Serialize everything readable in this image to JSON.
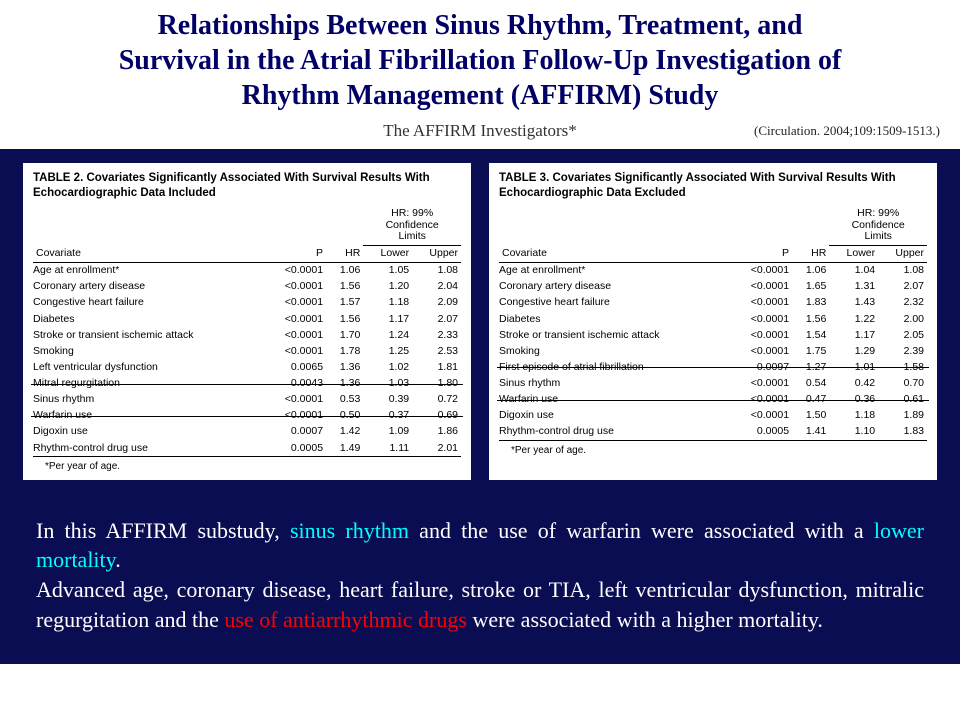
{
  "header": {
    "title_line1": "Relationships Between Sinus Rhythm, Treatment, and",
    "title_line2": "Survival in the Atrial Fibrillation Follow-Up Investigation of",
    "title_line3": "Rhythm Management (AFFIRM) Study",
    "investigators": "The AFFIRM Investigators*",
    "citation": "(Circulation. 2004;109:1509-1513.)",
    "colors": {
      "title": "#000066",
      "background": "#ffffff"
    }
  },
  "band": {
    "background": "#0b0d52",
    "table_bg": "#ffffff"
  },
  "table2": {
    "title": "TABLE 2.   Covariates Significantly Associated With Survival Results With Echocardiographic Data Included",
    "head": {
      "covariate": "Covariate",
      "p": "P",
      "hr": "HR",
      "ci": "HR: 99% Confidence Limits",
      "lower": "Lower",
      "upper": "Upper"
    },
    "rows": [
      {
        "cov": "Age at enrollment*",
        "p": "<0.0001",
        "hr": "1.06",
        "lo": "1.05",
        "up": "1.08"
      },
      {
        "cov": "Coronary artery disease",
        "p": "<0.0001",
        "hr": "1.56",
        "lo": "1.20",
        "up": "2.04"
      },
      {
        "cov": "Congestive heart failure",
        "p": "<0.0001",
        "hr": "1.57",
        "lo": "1.18",
        "up": "2.09"
      },
      {
        "cov": "Diabetes",
        "p": "<0.0001",
        "hr": "1.56",
        "lo": "1.17",
        "up": "2.07"
      },
      {
        "cov": "Stroke or transient ischemic attack",
        "p": "<0.0001",
        "hr": "1.70",
        "lo": "1.24",
        "up": "2.33"
      },
      {
        "cov": "Smoking",
        "p": "<0.0001",
        "hr": "1.78",
        "lo": "1.25",
        "up": "2.53"
      },
      {
        "cov": "Left ventricular dysfunction",
        "p": "0.0065",
        "hr": "1.36",
        "lo": "1.02",
        "up": "1.81"
      },
      {
        "cov": "Mitral regurgitation",
        "p": "0.0043",
        "hr": "1.36",
        "lo": "1.03",
        "up": "1.80"
      },
      {
        "cov": "Sinus rhythm",
        "p": "<0.0001",
        "hr": "0.53",
        "lo": "0.39",
        "up": "0.72"
      },
      {
        "cov": "Warfarin use",
        "p": "<0.0001",
        "hr": "0.50",
        "lo": "0.37",
        "up": "0.69"
      },
      {
        "cov": "Digoxin use",
        "p": "0.0007",
        "hr": "1.42",
        "lo": "1.09",
        "up": "1.86"
      },
      {
        "cov": "Rhythm-control drug use",
        "p": "0.0005",
        "hr": "1.49",
        "lo": "1.11",
        "up": "2.01"
      }
    ],
    "note": "*Per year of age.",
    "strike_rows": [
      "Mitral regurgitation",
      "Warfarin use"
    ]
  },
  "table3": {
    "title": "TABLE 3.   Covariates Significantly Associated With Survival Results With Echocardiographic Data Excluded",
    "head": {
      "covariate": "Covariate",
      "p": "P",
      "hr": "HR",
      "ci": "HR: 99% Confidence Limits",
      "lower": "Lower",
      "upper": "Upper"
    },
    "rows": [
      {
        "cov": "Age at enrollment*",
        "p": "<0.0001",
        "hr": "1.06",
        "lo": "1.04",
        "up": "1.08"
      },
      {
        "cov": "Coronary artery disease",
        "p": "<0.0001",
        "hr": "1.65",
        "lo": "1.31",
        "up": "2.07"
      },
      {
        "cov": "Congestive heart failure",
        "p": "<0.0001",
        "hr": "1.83",
        "lo": "1.43",
        "up": "2.32"
      },
      {
        "cov": "Diabetes",
        "p": "<0.0001",
        "hr": "1.56",
        "lo": "1.22",
        "up": "2.00"
      },
      {
        "cov": "Stroke or transient ischemic attack",
        "p": "<0.0001",
        "hr": "1.54",
        "lo": "1.17",
        "up": "2.05"
      },
      {
        "cov": "Smoking",
        "p": "<0.0001",
        "hr": "1.75",
        "lo": "1.29",
        "up": "2.39"
      },
      {
        "cov": "First episode of atrial fibrillation",
        "p": "0.0097",
        "hr": "1.27",
        "lo": "1.01",
        "up": "1.58"
      },
      {
        "cov": "Sinus rhythm",
        "p": "<0.0001",
        "hr": "0.54",
        "lo": "0.42",
        "up": "0.70"
      },
      {
        "cov": "Warfarin use",
        "p": "<0.0001",
        "hr": "0.47",
        "lo": "0.36",
        "up": "0.61"
      },
      {
        "cov": "Digoxin use",
        "p": "<0.0001",
        "hr": "1.50",
        "lo": "1.18",
        "up": "1.89"
      },
      {
        "cov": "Rhythm-control drug use",
        "p": "0.0005",
        "hr": "1.41",
        "lo": "1.10",
        "up": "1.83"
      }
    ],
    "note": "*Per year of age.",
    "strike_rows": [
      "First episode of atrial fibrillation",
      "Warfarin use"
    ]
  },
  "summary": {
    "prefix1": "In this AFFIRM substudy, ",
    "cyan1": "sinus rhythm",
    "mid1": " and the use of warfarin were associated with a ",
    "cyan2": "lower mortality",
    "after1": ".",
    "br": " ",
    "line2a": "Advanced age, coronary disease, heart failure, stroke or TIA, left ventricular dysfunction, mitralic regurgitation and the ",
    "red1": "use of antiarrhythmic drugs",
    "line2b": " were associated with a higher mortality.",
    "colors": {
      "text": "#ffffff",
      "cyan": "#00ffff",
      "red": "#ff0000",
      "bg": "#0b0d52"
    }
  }
}
